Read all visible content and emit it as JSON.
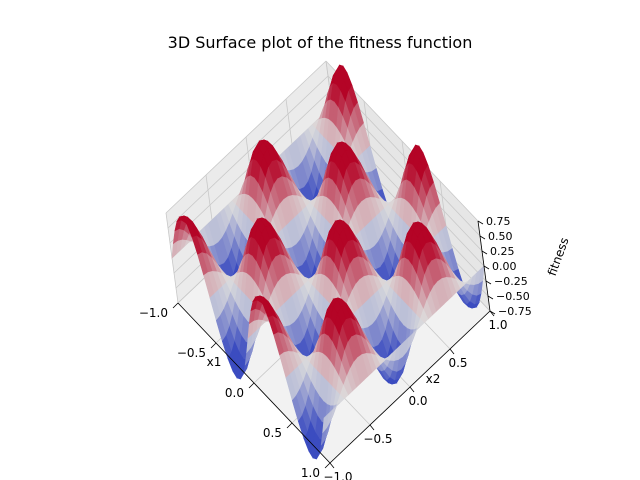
{
  "chart_data": {
    "type": "surface3d",
    "title": "3D Surface plot of the fitness function",
    "xlabel": "x1",
    "ylabel": "x2",
    "zlabel": "fitness",
    "xlim": [
      -1.0,
      1.0
    ],
    "ylim": [
      -1.0,
      1.0
    ],
    "zlim": [
      -0.75,
      0.75
    ],
    "x_ticks": [
      "−1.0",
      "−0.5",
      "0.0",
      "0.5",
      "1.0"
    ],
    "y_ticks": [
      "−1.0",
      "−0.5",
      "0.0",
      "0.5",
      "1.0"
    ],
    "z_ticks": [
      "−0.75",
      "−0.50",
      "−0.25",
      "0.00",
      "0.25",
      "0.50",
      "0.75"
    ],
    "function": "sin(2*pi*x1) * cos(2*pi*x2)",
    "grid": true,
    "colormap": "coolwarm",
    "colormap_colors": [
      "#3b4cc0",
      "#dddddd",
      "#b40426"
    ],
    "pane_color": "#f2f2f2",
    "grid_color": "#c8c8c8"
  }
}
